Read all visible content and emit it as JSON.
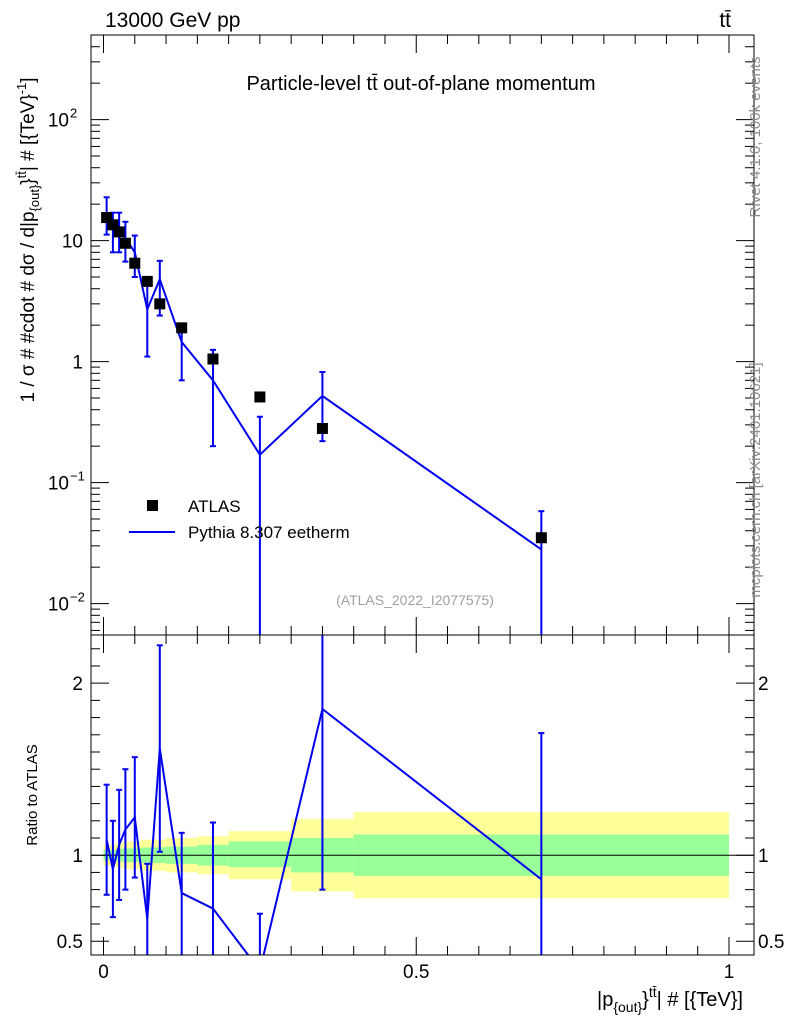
{
  "header": {
    "energy_label": "13000 GeV pp",
    "process_label": "tt̄"
  },
  "side_labels": {
    "rivet": "Rivet 4.1.0,  100k events",
    "source": "mcplots.cern.ch [arXiv:2401.10621]"
  },
  "colors": {
    "mc_line": "#0000ee",
    "band_inner": "#99ff99",
    "band_outer": "#ffff99",
    "data_marker": "#000000"
  },
  "chart_data": [
    {
      "type": "scatter",
      "panel": "main",
      "title": "Particle-level tt̄ out-of-plane momentum",
      "xlabel": "|p_{out}^{tt̄}| # [{TeV}]",
      "ylabel": "1 / σ # #cdot # dσ / d|p_{out}^{tt̄}| # [{TeV}^{-1}]",
      "yscale": "log",
      "xlim": [
        -0.02,
        1.04
      ],
      "ylim": [
        0.0055,
        500
      ],
      "y_ticks": [
        {
          "value": 100,
          "base": "10",
          "exp": "2"
        },
        {
          "value": 10,
          "label": "10"
        },
        {
          "value": 1,
          "label": "1"
        },
        {
          "value": 0.1,
          "base": "10",
          "exp": "−1"
        },
        {
          "value": 0.01,
          "base": "10",
          "exp": "−2"
        }
      ],
      "analysis_id": "(ATLAS_2022_I2077575)",
      "legend": {
        "placement": "bottom-left",
        "entries": [
          {
            "label": "ATLAS",
            "kind": "marker"
          },
          {
            "label": "Pythia 8.307 eetherm",
            "kind": "line"
          }
        ]
      },
      "bin_edges": [
        0,
        0.01,
        0.02,
        0.03,
        0.04,
        0.06,
        0.08,
        0.1,
        0.15,
        0.2,
        0.3,
        0.4,
        1.0
      ],
      "series": [
        {
          "name": "ATLAS",
          "x": [
            0.005,
            0.015,
            0.025,
            0.035,
            0.05,
            0.07,
            0.09,
            0.125,
            0.175,
            0.25,
            0.35,
            0.7
          ],
          "values": [
            15.5,
            13.5,
            11.8,
            9.5,
            6.5,
            4.6,
            3.0,
            1.9,
            1.05,
            0.51,
            0.28,
            0.035
          ]
        },
        {
          "name": "Pythia 8.307 eetherm",
          "x": [
            0.005,
            0.015,
            0.025,
            0.035,
            0.05,
            0.07,
            0.09,
            0.125,
            0.175,
            0.25,
            0.35,
            0.7
          ],
          "values": [
            17.0,
            12.5,
            12.5,
            10.5,
            8.0,
            2.7,
            4.8,
            1.45,
            0.7,
            0.17,
            0.52,
            0.028
          ],
          "err_low": [
            5.8,
            4.5,
            4.5,
            3.8,
            3.0,
            1.6,
            2.4,
            0.75,
            0.5,
            0.165,
            0.3,
            0.027
          ],
          "err_high": [
            5.8,
            4.5,
            4.5,
            3.8,
            3.0,
            1.6,
            2.0,
            0.6,
            0.55,
            0.18,
            0.3,
            0.03
          ]
        }
      ]
    },
    {
      "type": "line",
      "panel": "ratio",
      "ylabel": "Ratio to ATLAS",
      "xlabel": "|p_{out}^{tt̄}| # [{TeV}]",
      "xlim": [
        -0.02,
        1.04
      ],
      "ylim": [
        0.42,
        2.28
      ],
      "reference_line": 1,
      "x_ticks": [
        {
          "value": 0,
          "label": "0"
        },
        {
          "value": 0.5,
          "label": "0.5"
        },
        {
          "value": 1,
          "label": "1"
        }
      ],
      "y_ticks": [
        {
          "value": 0.5,
          "label": "0.5"
        },
        {
          "value": 1,
          "label": "1"
        },
        {
          "value": 2,
          "label": "2"
        }
      ],
      "band_bins": [
        {
          "x0": 0.0,
          "x1": 0.01,
          "inner": [
            0.97,
            1.03
          ],
          "outer": [
            0.94,
            1.06
          ]
        },
        {
          "x0": 0.01,
          "x1": 0.02,
          "inner": [
            0.97,
            1.03
          ],
          "outer": [
            0.94,
            1.06
          ]
        },
        {
          "x0": 0.02,
          "x1": 0.03,
          "inner": [
            0.965,
            1.035
          ],
          "outer": [
            0.93,
            1.07
          ]
        },
        {
          "x0": 0.03,
          "x1": 0.04,
          "inner": [
            0.96,
            1.04
          ],
          "outer": [
            0.92,
            1.08
          ]
        },
        {
          "x0": 0.04,
          "x1": 0.06,
          "inner": [
            0.96,
            1.04
          ],
          "outer": [
            0.92,
            1.08
          ]
        },
        {
          "x0": 0.06,
          "x1": 0.08,
          "inner": [
            0.955,
            1.045
          ],
          "outer": [
            0.91,
            1.09
          ]
        },
        {
          "x0": 0.08,
          "x1": 0.1,
          "inner": [
            0.955,
            1.045
          ],
          "outer": [
            0.91,
            1.09
          ]
        },
        {
          "x0": 0.1,
          "x1": 0.15,
          "inner": [
            0.95,
            1.05
          ],
          "outer": [
            0.9,
            1.1
          ]
        },
        {
          "x0": 0.15,
          "x1": 0.2,
          "inner": [
            0.94,
            1.06
          ],
          "outer": [
            0.89,
            1.11
          ]
        },
        {
          "x0": 0.2,
          "x1": 0.3,
          "inner": [
            0.93,
            1.08
          ],
          "outer": [
            0.86,
            1.14
          ]
        },
        {
          "x0": 0.3,
          "x1": 0.4,
          "inner": [
            0.9,
            1.1
          ],
          "outer": [
            0.79,
            1.21
          ]
        },
        {
          "x0": 0.4,
          "x1": 1.0,
          "inner": [
            0.88,
            1.12
          ],
          "outer": [
            0.75,
            1.25
          ]
        }
      ],
      "series": [
        {
          "name": "Pythia 8.307 eetherm / ATLAS",
          "x": [
            0.005,
            0.015,
            0.025,
            0.035,
            0.05,
            0.07,
            0.09,
            0.125,
            0.175,
            0.25,
            0.35,
            0.7
          ],
          "values": [
            1.09,
            0.92,
            1.06,
            1.15,
            1.22,
            0.63,
            1.62,
            0.78,
            0.69,
            0.33,
            1.85,
            0.86
          ],
          "err_low": [
            0.32,
            0.28,
            0.32,
            0.35,
            0.35,
            0.32,
            0.6,
            0.4,
            0.5,
            0.33,
            1.05,
            0.85
          ],
          "err_high": [
            0.32,
            0.28,
            0.32,
            0.35,
            0.35,
            0.32,
            0.6,
            0.35,
            0.5,
            0.33,
            1.05,
            0.85
          ]
        }
      ]
    }
  ]
}
